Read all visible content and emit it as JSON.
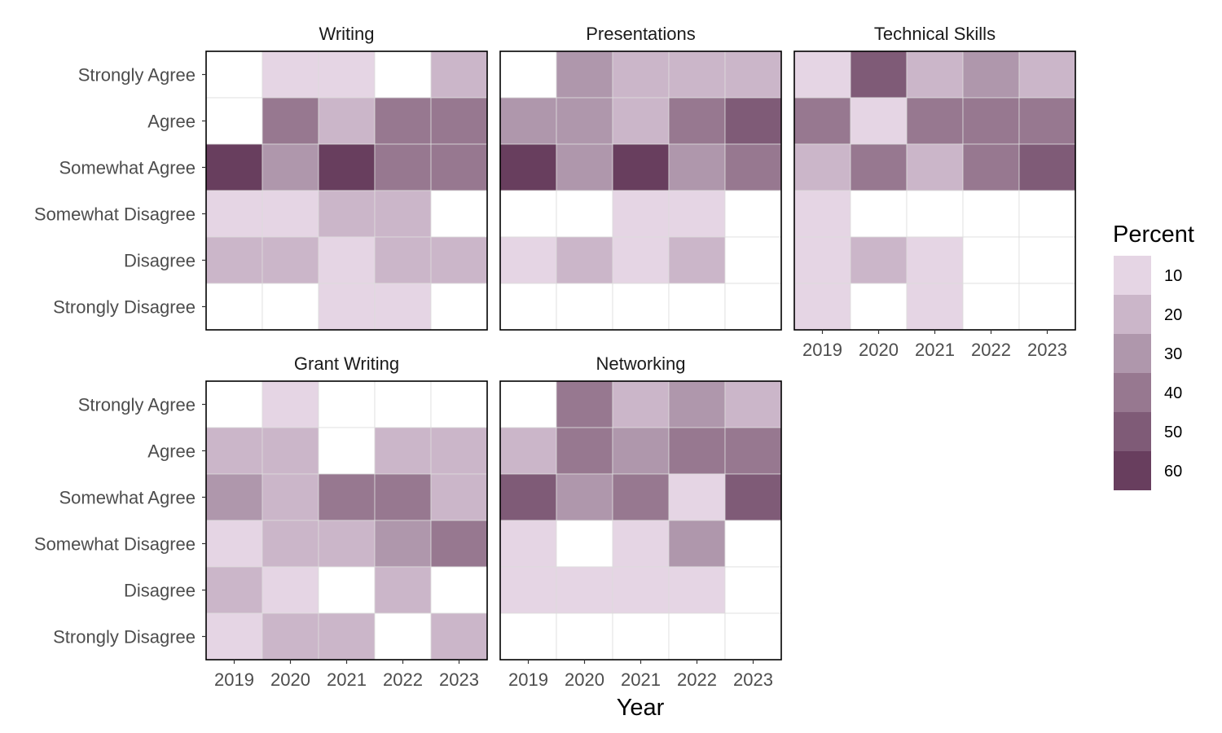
{
  "chart_data": {
    "type": "heatmap",
    "x_label": "Year",
    "years": [
      "2019",
      "2020",
      "2021",
      "2022",
      "2023"
    ],
    "responses": [
      "Strongly Agree",
      "Agree",
      "Somewhat Agree",
      "Somewhat Disagree",
      "Disagree",
      "Strongly Disagree"
    ],
    "legend": {
      "title": "Percent",
      "breaks": [
        "10",
        "20",
        "30",
        "40",
        "50",
        "60"
      ],
      "colors": [
        "#e5d5e4",
        "#cbb6c9",
        "#af97ac",
        "#977890",
        "#7f5b77",
        "#683e5e"
      ]
    },
    "empty_cell_color": "#ffffff",
    "panels": [
      {
        "title": "Writing",
        "values": [
          [
            0,
            10,
            10,
            0,
            20
          ],
          [
            0,
            40,
            20,
            40,
            40
          ],
          [
            60,
            30,
            60,
            40,
            40
          ],
          [
            10,
            10,
            20,
            20,
            0
          ],
          [
            20,
            20,
            10,
            20,
            20
          ],
          [
            0,
            0,
            10,
            10,
            0
          ]
        ]
      },
      {
        "title": "Presentations",
        "values": [
          [
            0,
            30,
            20,
            20,
            20
          ],
          [
            30,
            30,
            20,
            40,
            50
          ],
          [
            60,
            30,
            60,
            30,
            40
          ],
          [
            0,
            0,
            10,
            10,
            0
          ],
          [
            10,
            20,
            10,
            20,
            0
          ],
          [
            0,
            0,
            0,
            0,
            0
          ]
        ]
      },
      {
        "title": "Technical Skills",
        "values": [
          [
            10,
            50,
            20,
            30,
            20
          ],
          [
            40,
            10,
            40,
            40,
            40
          ],
          [
            20,
            40,
            20,
            40,
            50
          ],
          [
            10,
            0,
            0,
            0,
            0
          ],
          [
            10,
            20,
            10,
            0,
            0
          ],
          [
            10,
            0,
            10,
            0,
            0
          ]
        ]
      },
      {
        "title": "Grant Writing",
        "values": [
          [
            0,
            10,
            0,
            0,
            0
          ],
          [
            20,
            20,
            0,
            20,
            20
          ],
          [
            30,
            20,
            40,
            40,
            20
          ],
          [
            10,
            20,
            20,
            30,
            40
          ],
          [
            20,
            10,
            0,
            20,
            0
          ],
          [
            10,
            20,
            20,
            0,
            20
          ]
        ]
      },
      {
        "title": "Networking",
        "values": [
          [
            0,
            40,
            20,
            30,
            20
          ],
          [
            20,
            40,
            30,
            40,
            40
          ],
          [
            50,
            30,
            40,
            10,
            50
          ],
          [
            10,
            0,
            10,
            30,
            0
          ],
          [
            10,
            10,
            10,
            10,
            0
          ],
          [
            0,
            0,
            0,
            0,
            0
          ]
        ]
      }
    ]
  }
}
